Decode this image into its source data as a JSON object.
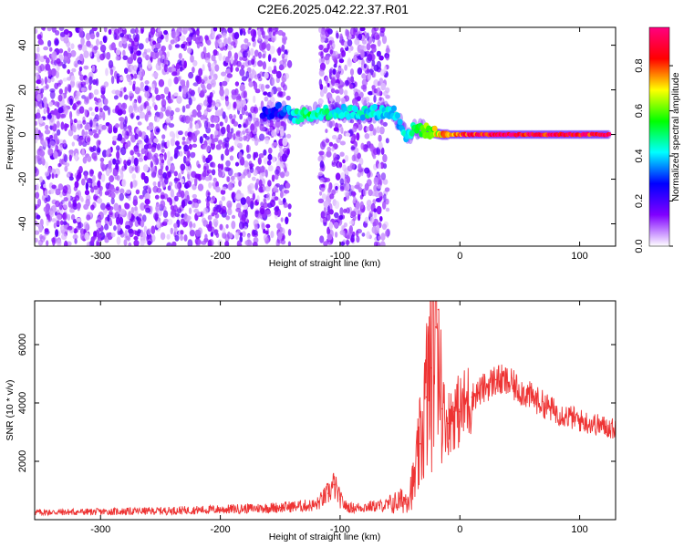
{
  "title": "C2E6.2025.042.22.37.R01",
  "chart_data": [
    {
      "type": "heatmap",
      "xlabel": "Height of straight line (km)",
      "ylabel": "Frequency (Hz)",
      "xlim": [
        -355,
        130
      ],
      "ylim": [
        -50,
        48
      ],
      "x_ticks": [
        "-300",
        "-200",
        "-100",
        "0",
        "100"
      ],
      "x_tick_values": [
        -300,
        -200,
        -100,
        0,
        100
      ],
      "y_ticks": [
        "-40",
        "-20",
        "0",
        "20",
        "40"
      ],
      "y_tick_values": [
        -40,
        -20,
        0,
        20,
        40
      ],
      "colorbar": {
        "label": "Normalized spectral amplitude",
        "range": [
          0,
          0.97
        ],
        "ticks": [
          "0.0",
          "0.2",
          "0.4",
          "0.6",
          "0.8"
        ],
        "tick_values": [
          0.0,
          0.2,
          0.4,
          0.6,
          0.8
        ],
        "colors": [
          "#ffffff",
          "#8000ff",
          "#0000ff",
          "#00ffff",
          "#00ff00",
          "#ffff00",
          "#ff0000",
          "#ff0080"
        ]
      },
      "regions": [
        {
          "x": [
            -355,
            -142
          ],
          "f": [
            -50,
            48
          ],
          "amplitude": 0.12,
          "kind": "broadband noise"
        },
        {
          "x": [
            -117,
            -60
          ],
          "f": [
            -50,
            48
          ],
          "amplitude": 0.12,
          "kind": "broadband noise"
        }
      ],
      "features": [
        {
          "x": -165,
          "f": 9,
          "amplitude": 0.25
        },
        {
          "x": -150,
          "f": 11,
          "amplitude": 0.28
        },
        {
          "x": -135,
          "f": 8,
          "amplitude": 0.45
        },
        {
          "x": -125,
          "f": 9,
          "amplitude": 0.5
        },
        {
          "x": -115,
          "f": 10,
          "amplitude": 0.45
        },
        {
          "x": -55,
          "f": 10,
          "amplitude": 0.4
        },
        {
          "x": -45,
          "f": 0,
          "amplitude": 0.4
        },
        {
          "x": -35,
          "f": 3,
          "amplitude": 0.5
        },
        {
          "x": -25,
          "f": 1,
          "amplitude": 0.6
        },
        {
          "x": -15,
          "f": 0,
          "amplitude": 0.7
        },
        {
          "x": 0,
          "f": 0,
          "amplitude": 0.85
        },
        {
          "x": 50,
          "f": 0,
          "amplitude": 0.9
        },
        {
          "x": 125,
          "f": 0,
          "amplitude": 0.9
        }
      ]
    },
    {
      "type": "line",
      "xlabel": "Height of straight line (km)",
      "ylabel": "SNR (10 * v/v)",
      "xlim": [
        -355,
        130
      ],
      "ylim": [
        0,
        7500
      ],
      "x_ticks": [
        "-300",
        "-200",
        "-100",
        "0",
        "100"
      ],
      "x_tick_values": [
        -300,
        -200,
        -100,
        0,
        100
      ],
      "y_ticks": [
        "2000",
        "4000",
        "6000"
      ],
      "y_tick_values": [
        2000,
        4000,
        6000
      ],
      "color": "#ee3333",
      "x": [
        -355,
        -300,
        -250,
        -200,
        -150,
        -120,
        -110,
        -105,
        -100,
        -95,
        -90,
        -60,
        -45,
        -38,
        -33,
        -28,
        -24,
        -20,
        -18,
        -15,
        -10,
        -5,
        0,
        10,
        20,
        30,
        40,
        60,
        80,
        100,
        130
      ],
      "y": [
        250,
        270,
        300,
        350,
        420,
        500,
        900,
        1200,
        700,
        450,
        400,
        500,
        700,
        1300,
        2600,
        4200,
        5200,
        6600,
        7200,
        3800,
        3300,
        3700,
        3700,
        4200,
        4500,
        4800,
        4700,
        4200,
        3700,
        3400,
        3100
      ]
    }
  ]
}
